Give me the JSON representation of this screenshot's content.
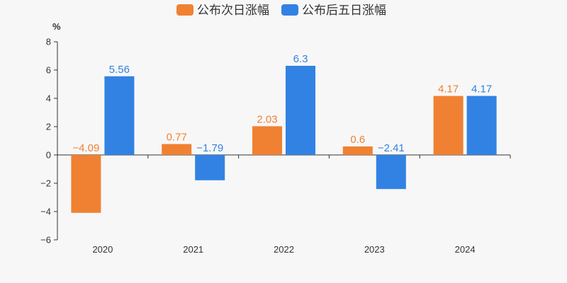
{
  "chart_data": {
    "type": "bar",
    "categories": [
      "2020",
      "2021",
      "2022",
      "2023",
      "2024"
    ],
    "series": [
      {
        "name": "公布次日涨幅",
        "values": [
          -4.09,
          0.77,
          2.03,
          0.6,
          4.17
        ],
        "color": "#f08132"
      },
      {
        "name": "公布后五日涨幅",
        "values": [
          5.56,
          -1.79,
          6.3,
          -2.41,
          4.17
        ],
        "color": "#3282e3"
      }
    ],
    "ylabel": "%",
    "ylim": [
      -6,
      8
    ],
    "yticks": [
      -6,
      -4,
      -2,
      0,
      2,
      4,
      6,
      8
    ],
    "ytick_labels": [
      "−6",
      "−4",
      "−2",
      "0",
      "2",
      "4",
      "6",
      "8"
    ],
    "data_labels": [
      [
        "−4.09",
        "0.77",
        "2.03",
        "0.6",
        "4.17"
      ],
      [
        "5.56",
        "−1.79",
        "6.3",
        "−2.41",
        "4.17"
      ]
    ],
    "legend": "top-center",
    "grid": false
  }
}
